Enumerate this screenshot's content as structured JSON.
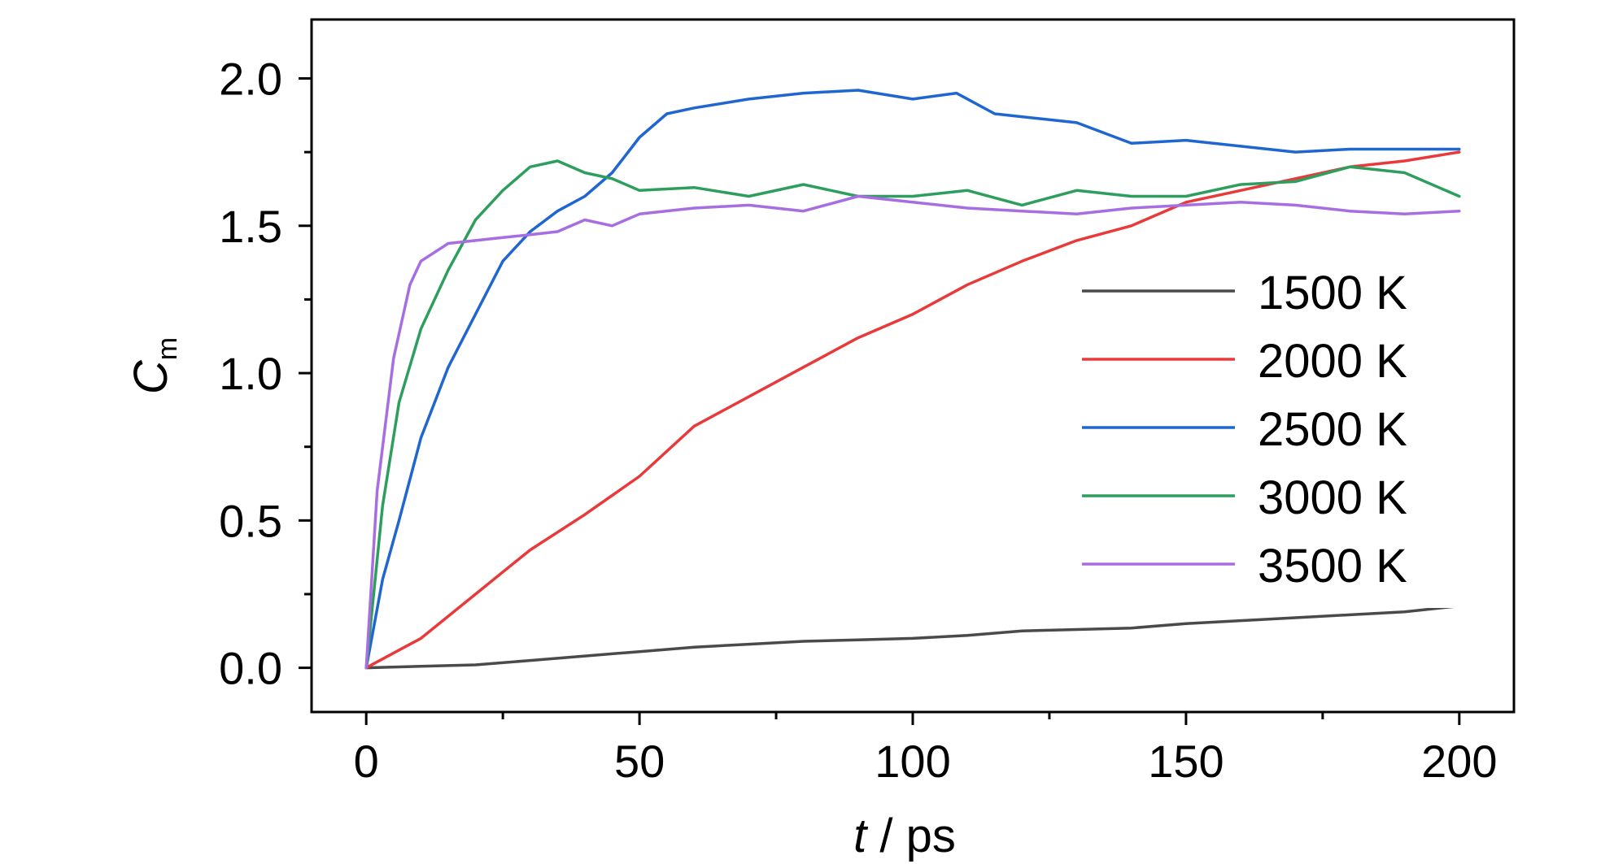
{
  "chart_data": {
    "type": "line",
    "xlabel": {
      "italic": "t",
      "rest": " / ps"
    },
    "ylabel": {
      "main": "C",
      "sub": "m"
    },
    "xlim": [
      -10,
      210
    ],
    "ylim": [
      -0.15,
      2.2
    ],
    "xticks": [
      0,
      50,
      100,
      150,
      200
    ],
    "xtick_labels": [
      "0",
      "50",
      "100",
      "150",
      "200"
    ],
    "yticks": [
      0.0,
      0.5,
      1.0,
      1.5,
      2.0
    ],
    "ytick_labels": [
      "0.0",
      "0.5",
      "1.0",
      "1.5",
      "2.0"
    ],
    "x_minor_ticks": [
      25,
      75,
      125,
      175
    ],
    "y_minor_ticks": [
      0.25,
      0.75,
      1.25,
      1.75
    ],
    "legend_position": "center-right",
    "series": [
      {
        "name": "1500 K",
        "color": "#4a4a4a",
        "x": [
          0,
          10,
          20,
          30,
          40,
          50,
          60,
          70,
          80,
          90,
          100,
          110,
          120,
          130,
          140,
          150,
          160,
          170,
          180,
          190,
          200
        ],
        "y": [
          0.0,
          0.005,
          0.01,
          0.025,
          0.04,
          0.055,
          0.07,
          0.08,
          0.09,
          0.095,
          0.1,
          0.11,
          0.125,
          0.13,
          0.135,
          0.15,
          0.16,
          0.17,
          0.18,
          0.19,
          0.21
        ]
      },
      {
        "name": "2000 K",
        "color": "#e83a3a",
        "x": [
          0,
          10,
          20,
          30,
          40,
          50,
          60,
          70,
          80,
          90,
          100,
          110,
          120,
          130,
          140,
          150,
          160,
          170,
          180,
          190,
          200
        ],
        "y": [
          0.0,
          0.1,
          0.25,
          0.4,
          0.52,
          0.65,
          0.82,
          0.92,
          1.02,
          1.12,
          1.2,
          1.3,
          1.38,
          1.45,
          1.5,
          1.58,
          1.62,
          1.66,
          1.7,
          1.72,
          1.75
        ]
      },
      {
        "name": "2500 K",
        "color": "#1f66d1",
        "x": [
          0,
          3,
          6,
          10,
          15,
          20,
          25,
          30,
          35,
          40,
          45,
          50,
          55,
          60,
          70,
          80,
          90,
          100,
          108,
          115,
          125,
          130,
          140,
          150,
          160,
          170,
          180,
          190,
          200
        ],
        "y": [
          0.0,
          0.3,
          0.5,
          0.78,
          1.02,
          1.2,
          1.38,
          1.48,
          1.55,
          1.6,
          1.68,
          1.8,
          1.88,
          1.9,
          1.93,
          1.95,
          1.96,
          1.93,
          1.95,
          1.88,
          1.86,
          1.85,
          1.78,
          1.79,
          1.77,
          1.75,
          1.76,
          1.76,
          1.76
        ]
      },
      {
        "name": "3000 K",
        "color": "#2e9e5e",
        "x": [
          0,
          3,
          6,
          10,
          15,
          20,
          25,
          30,
          35,
          40,
          45,
          50,
          60,
          70,
          80,
          90,
          100,
          110,
          120,
          130,
          140,
          150,
          160,
          170,
          180,
          190,
          200
        ],
        "y": [
          0.0,
          0.55,
          0.9,
          1.15,
          1.35,
          1.52,
          1.62,
          1.7,
          1.72,
          1.68,
          1.66,
          1.62,
          1.63,
          1.6,
          1.64,
          1.6,
          1.6,
          1.62,
          1.57,
          1.62,
          1.6,
          1.6,
          1.64,
          1.65,
          1.7,
          1.68,
          1.6
        ]
      },
      {
        "name": "3500 K",
        "color": "#a66ee0",
        "x": [
          0,
          2,
          5,
          8,
          10,
          15,
          20,
          25,
          30,
          35,
          40,
          45,
          50,
          60,
          70,
          80,
          90,
          100,
          110,
          120,
          130,
          140,
          150,
          160,
          170,
          180,
          190,
          200
        ],
        "y": [
          0.0,
          0.6,
          1.05,
          1.3,
          1.38,
          1.44,
          1.45,
          1.46,
          1.47,
          1.48,
          1.52,
          1.5,
          1.54,
          1.56,
          1.57,
          1.55,
          1.6,
          1.58,
          1.56,
          1.55,
          1.54,
          1.56,
          1.57,
          1.58,
          1.57,
          1.55,
          1.54,
          1.55
        ]
      }
    ]
  }
}
